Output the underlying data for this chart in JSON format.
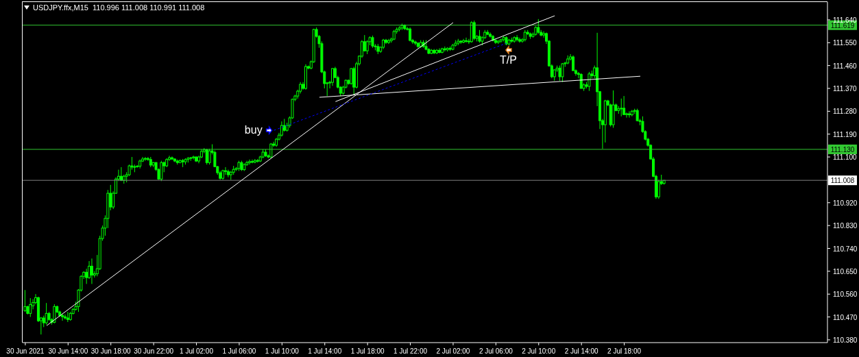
{
  "chart_data": {
    "type": "candlestick",
    "title": "USDJPY.ffx,M15  110.996 111.008 110.991 111.008",
    "color": "#00ff00",
    "x": [
      "2021-06-30T10:00",
      "2021-06-30T10:15",
      "2021-06-30T10:30",
      "2021-06-30T10:45",
      "2021-06-30T11:00",
      "2021-06-30T11:15",
      "2021-06-30T11:30",
      "2021-06-30T11:45",
      "2021-06-30T12:00",
      "2021-06-30T12:15",
      "2021-06-30T12:30",
      "2021-06-30T12:45",
      "2021-06-30T13:00",
      "2021-06-30T13:15",
      "2021-06-30T13:30",
      "2021-06-30T13:45",
      "2021-06-30T14:00",
      "2021-06-30T14:15",
      "2021-06-30T14:30",
      "2021-06-30T14:45",
      "2021-06-30T15:00",
      "2021-06-30T15:15",
      "2021-06-30T15:30",
      "2021-06-30T15:45",
      "2021-06-30T16:00",
      "2021-06-30T16:15",
      "2021-06-30T16:30",
      "2021-06-30T16:45",
      "2021-06-30T17:00",
      "2021-06-30T17:15",
      "2021-06-30T17:30",
      "2021-06-30T17:45",
      "2021-06-30T18:00",
      "2021-06-30T18:15",
      "2021-06-30T18:30",
      "2021-06-30T18:45",
      "2021-06-30T19:00",
      "2021-06-30T19:15",
      "2021-06-30T19:30",
      "2021-06-30T19:45",
      "2021-06-30T20:00",
      "2021-06-30T20:15",
      "2021-06-30T20:30",
      "2021-06-30T20:45",
      "2021-06-30T21:00",
      "2021-06-30T21:15",
      "2021-06-30T21:30",
      "2021-06-30T21:45",
      "2021-06-30T22:00",
      "2021-06-30T22:15",
      "2021-06-30T22:30",
      "2021-06-30T22:45",
      "2021-06-30T23:00",
      "2021-06-30T23:15",
      "2021-06-30T23:30",
      "2021-06-30T23:45",
      "2021-07-01T00:00",
      "2021-07-01T00:15",
      "2021-07-01T00:30",
      "2021-07-01T00:45",
      "2021-07-01T01:00",
      "2021-07-01T01:15",
      "2021-07-01T01:30",
      "2021-07-01T01:45",
      "2021-07-01T02:00",
      "2021-07-01T02:15",
      "2021-07-01T02:30",
      "2021-07-01T02:45",
      "2021-07-01T03:00",
      "2021-07-01T03:15",
      "2021-07-01T03:30",
      "2021-07-01T03:45",
      "2021-07-01T04:00",
      "2021-07-01T04:15",
      "2021-07-01T04:30",
      "2021-07-01T04:45",
      "2021-07-01T05:00",
      "2021-07-01T05:15",
      "2021-07-01T05:30",
      "2021-07-01T05:45",
      "2021-07-01T06:00",
      "2021-07-01T06:15",
      "2021-07-01T06:30",
      "2021-07-01T06:45",
      "2021-07-01T07:00",
      "2021-07-01T07:15",
      "2021-07-01T07:30",
      "2021-07-01T07:45",
      "2021-07-01T08:00",
      "2021-07-01T08:15",
      "2021-07-01T08:30",
      "2021-07-01T08:45",
      "2021-07-01T09:00",
      "2021-07-01T09:15",
      "2021-07-01T09:30",
      "2021-07-01T09:45",
      "2021-07-01T10:00",
      "2021-07-01T10:15",
      "2021-07-01T10:30",
      "2021-07-01T10:45",
      "2021-07-01T11:00",
      "2021-07-01T11:15",
      "2021-07-01T11:30",
      "2021-07-01T11:45",
      "2021-07-01T12:00",
      "2021-07-01T12:15",
      "2021-07-01T12:30",
      "2021-07-01T12:45",
      "2021-07-01T13:00",
      "2021-07-01T13:15",
      "2021-07-01T13:30",
      "2021-07-01T13:45",
      "2021-07-01T14:00",
      "2021-07-01T14:15",
      "2021-07-01T14:30",
      "2021-07-01T14:45",
      "2021-07-01T15:00",
      "2021-07-01T15:15",
      "2021-07-01T15:30",
      "2021-07-01T15:45",
      "2021-07-01T16:00",
      "2021-07-01T16:15",
      "2021-07-01T16:30",
      "2021-07-01T16:45",
      "2021-07-01T17:00",
      "2021-07-01T17:15",
      "2021-07-01T17:30",
      "2021-07-01T17:45",
      "2021-07-01T18:00",
      "2021-07-01T18:15",
      "2021-07-01T18:30",
      "2021-07-01T18:45",
      "2021-07-01T19:00",
      "2021-07-01T19:15",
      "2021-07-01T19:30",
      "2021-07-01T19:45",
      "2021-07-01T20:00",
      "2021-07-01T20:15",
      "2021-07-01T20:30",
      "2021-07-01T20:45",
      "2021-07-01T21:00",
      "2021-07-01T21:15",
      "2021-07-01T21:30",
      "2021-07-01T21:45",
      "2021-07-01T22:00",
      "2021-07-01T22:15",
      "2021-07-01T22:30",
      "2021-07-01T22:45",
      "2021-07-01T23:00",
      "2021-07-01T23:15",
      "2021-07-01T23:30",
      "2021-07-01T23:45",
      "2021-07-02T00:00",
      "2021-07-02T00:15",
      "2021-07-02T00:30",
      "2021-07-02T00:45",
      "2021-07-02T01:00",
      "2021-07-02T01:15",
      "2021-07-02T01:30",
      "2021-07-02T01:45",
      "2021-07-02T02:00",
      "2021-07-02T02:15",
      "2021-07-02T02:30",
      "2021-07-02T02:45",
      "2021-07-02T03:00",
      "2021-07-02T03:15",
      "2021-07-02T03:30",
      "2021-07-02T03:45",
      "2021-07-02T04:00",
      "2021-07-02T04:15",
      "2021-07-02T04:30",
      "2021-07-02T04:45",
      "2021-07-02T05:00",
      "2021-07-02T05:15",
      "2021-07-02T05:30",
      "2021-07-02T05:45",
      "2021-07-02T06:00",
      "2021-07-02T06:15",
      "2021-07-02T06:30",
      "2021-07-02T06:45",
      "2021-07-02T07:00",
      "2021-07-02T07:15",
      "2021-07-02T07:30",
      "2021-07-02T07:45",
      "2021-07-02T08:00",
      "2021-07-02T08:15",
      "2021-07-02T08:30",
      "2021-07-02T08:45",
      "2021-07-02T09:00",
      "2021-07-02T09:15",
      "2021-07-02T09:30",
      "2021-07-02T09:45",
      "2021-07-02T10:00",
      "2021-07-02T10:15",
      "2021-07-02T10:30",
      "2021-07-02T10:45",
      "2021-07-02T11:00",
      "2021-07-02T11:15",
      "2021-07-02T11:30",
      "2021-07-02T11:45",
      "2021-07-02T12:00",
      "2021-07-02T12:15",
      "2021-07-02T12:30",
      "2021-07-02T12:45",
      "2021-07-02T13:00",
      "2021-07-02T13:15",
      "2021-07-02T13:30",
      "2021-07-02T13:45",
      "2021-07-02T14:00",
      "2021-07-02T14:15",
      "2021-07-02T14:30",
      "2021-07-02T14:45",
      "2021-07-02T15:00",
      "2021-07-02T15:15",
      "2021-07-02T15:30",
      "2021-07-02T15:45",
      "2021-07-02T16:00",
      "2021-07-02T16:15",
      "2021-07-02T16:30",
      "2021-07-02T16:45",
      "2021-07-02T17:00",
      "2021-07-02T17:15",
      "2021-07-02T17:30",
      "2021-07-02T17:45",
      "2021-07-02T18:00",
      "2021-07-02T18:15",
      "2021-07-02T18:30",
      "2021-07-02T18:45",
      "2021-07-02T19:00",
      "2021-07-02T19:15",
      "2021-07-02T19:30",
      "2021-07-02T19:45",
      "2021-07-02T20:00",
      "2021-07-02T20:15",
      "2021-07-02T20:30",
      "2021-07-02T20:45",
      "2021-07-02T21:00",
      "2021-07-02T21:15",
      "2021-07-02T21:30",
      "2021-07-02T21:45"
    ],
    "ohlc": [
      [
        110.495,
        110.576,
        110.49,
        110.511
      ],
      [
        110.511,
        110.514,
        110.48,
        110.484
      ],
      [
        110.484,
        110.544,
        110.47,
        110.519
      ],
      [
        110.514,
        110.54,
        110.5,
        110.527
      ],
      [
        110.527,
        110.56,
        110.52,
        110.546
      ],
      [
        110.546,
        110.55,
        110.45,
        110.455
      ],
      [
        110.455,
        110.47,
        110.401,
        110.466
      ],
      [
        110.466,
        110.475,
        110.43,
        110.447
      ],
      [
        110.447,
        110.525,
        110.44,
        110.484
      ],
      [
        110.484,
        110.49,
        110.455,
        110.46
      ],
      [
        110.46,
        110.465,
        110.44,
        110.449
      ],
      [
        110.449,
        110.52,
        110.445,
        110.511
      ],
      [
        110.511,
        110.515,
        110.485,
        110.49
      ],
      [
        110.49,
        110.495,
        110.47,
        110.476
      ],
      [
        110.476,
        110.482,
        110.455,
        110.471
      ],
      [
        110.471,
        110.48,
        110.46,
        110.466
      ],
      [
        110.466,
        110.49,
        110.45,
        110.46
      ],
      [
        110.46,
        110.49,
        110.455,
        110.484
      ],
      [
        110.484,
        110.505,
        110.48,
        110.5
      ],
      [
        110.5,
        110.53,
        110.495,
        110.511
      ],
      [
        110.511,
        110.58,
        110.49,
        110.576
      ],
      [
        110.576,
        110.635,
        110.57,
        110.63
      ],
      [
        110.63,
        110.65,
        110.62,
        110.646
      ],
      [
        110.646,
        110.66,
        110.6,
        110.625
      ],
      [
        110.625,
        110.69,
        110.62,
        110.67
      ],
      [
        110.67,
        110.7,
        110.6,
        110.635
      ],
      [
        110.635,
        110.65,
        110.625,
        110.64
      ],
      [
        110.64,
        110.714,
        110.63,
        110.66
      ],
      [
        110.66,
        110.79,
        110.655,
        110.779
      ],
      [
        110.779,
        110.83,
        110.77,
        110.82
      ],
      [
        110.82,
        110.87,
        110.79,
        110.858
      ],
      [
        110.858,
        110.97,
        110.82,
        110.957
      ],
      [
        110.957,
        110.99,
        110.89,
        110.903
      ],
      [
        110.903,
        110.965,
        110.895,
        110.957
      ],
      [
        110.957,
        111.02,
        110.955,
        111.013
      ],
      [
        111.013,
        111.05,
        111.005,
        111.024
      ],
      [
        111.024,
        111.06,
        111.005,
        111.008
      ],
      [
        111.008,
        111.03,
        110.995,
        111.024
      ],
      [
        111.024,
        111.04,
        111.0,
        111.03
      ],
      [
        111.03,
        111.07,
        111.025,
        111.065
      ],
      [
        111.065,
        111.1,
        111.05,
        111.06
      ],
      [
        111.06,
        111.07,
        111.04,
        111.062
      ],
      [
        111.062,
        111.068,
        111.058,
        111.064
      ],
      [
        111.064,
        111.09,
        111.055,
        111.084
      ],
      [
        111.084,
        111.1,
        111.08,
        111.092
      ],
      [
        111.092,
        111.1,
        111.085,
        111.094
      ],
      [
        111.094,
        111.1,
        111.085,
        111.09
      ],
      [
        111.09,
        111.1,
        111.06,
        111.068
      ],
      [
        111.068,
        111.08,
        111.06,
        111.078
      ],
      [
        111.078,
        111.08,
        111.045,
        111.051
      ],
      [
        111.051,
        111.055,
        111.01,
        111.013
      ],
      [
        111.013,
        111.085,
        111.005,
        111.078
      ],
      [
        111.078,
        111.082,
        111.04,
        111.065
      ],
      [
        111.065,
        111.095,
        111.06,
        111.09
      ],
      [
        111.09,
        111.105,
        111.085,
        111.097
      ],
      [
        111.097,
        111.102,
        111.088,
        111.092
      ],
      [
        111.092,
        111.095,
        111.08,
        111.084
      ],
      [
        111.084,
        111.09,
        111.07,
        111.078
      ],
      [
        111.078,
        111.09,
        111.075,
        111.086
      ],
      [
        111.086,
        111.092,
        111.06,
        111.081
      ],
      [
        111.081,
        111.095,
        111.07,
        111.09
      ],
      [
        111.09,
        111.1,
        111.078,
        111.095
      ],
      [
        111.095,
        111.1,
        111.085,
        111.097
      ],
      [
        111.097,
        111.105,
        111.09,
        111.1
      ],
      [
        111.1,
        111.102,
        111.08,
        111.084
      ],
      [
        111.084,
        111.105,
        111.075,
        111.1
      ],
      [
        111.1,
        111.13,
        111.095,
        111.122
      ],
      [
        111.122,
        111.135,
        111.115,
        111.128
      ],
      [
        111.128,
        111.132,
        111.07,
        111.078
      ],
      [
        111.078,
        111.132,
        111.07,
        111.124
      ],
      [
        111.124,
        111.15,
        111.11,
        111.118
      ],
      [
        111.118,
        111.125,
        111.06,
        111.062
      ],
      [
        111.062,
        111.065,
        111.03,
        111.038
      ],
      [
        111.038,
        111.045,
        111.01,
        111.016
      ],
      [
        111.016,
        111.05,
        111.01,
        111.046
      ],
      [
        111.046,
        111.06,
        111.03,
        111.043
      ],
      [
        111.043,
        111.05,
        111.02,
        111.03
      ],
      [
        111.03,
        111.045,
        111.01,
        111.04
      ],
      [
        111.04,
        111.065,
        111.03,
        111.051
      ],
      [
        111.051,
        111.06,
        111.045,
        111.055
      ],
      [
        111.055,
        111.085,
        111.045,
        111.078
      ],
      [
        111.078,
        111.085,
        111.045,
        111.05
      ],
      [
        111.05,
        111.075,
        111.045,
        111.07
      ],
      [
        111.07,
        111.085,
        111.065,
        111.078
      ],
      [
        111.078,
        111.09,
        111.07,
        111.082
      ],
      [
        111.082,
        111.09,
        111.075,
        111.08
      ],
      [
        111.08,
        111.092,
        111.075,
        111.086
      ],
      [
        111.086,
        111.092,
        111.078,
        111.084
      ],
      [
        111.084,
        111.105,
        111.08,
        111.1
      ],
      [
        111.1,
        111.13,
        111.095,
        111.119
      ],
      [
        111.119,
        111.13,
        111.1,
        111.105
      ],
      [
        111.105,
        111.11,
        111.095,
        111.1
      ],
      [
        111.1,
        111.155,
        111.095,
        111.151
      ],
      [
        111.151,
        111.16,
        111.14,
        111.146
      ],
      [
        111.146,
        111.175,
        111.14,
        111.17
      ],
      [
        111.17,
        111.195,
        111.165,
        111.186
      ],
      [
        111.186,
        111.24,
        111.18,
        111.224
      ],
      [
        111.224,
        111.25,
        111.2,
        111.205
      ],
      [
        111.205,
        111.235,
        111.2,
        111.224
      ],
      [
        111.224,
        111.26,
        111.215,
        111.254
      ],
      [
        111.254,
        111.33,
        111.25,
        111.327
      ],
      [
        111.327,
        111.345,
        111.32,
        111.34
      ],
      [
        111.34,
        111.365,
        111.33,
        111.359
      ],
      [
        111.359,
        111.395,
        111.35,
        111.386
      ],
      [
        111.386,
        111.395,
        111.365,
        111.37
      ],
      [
        111.37,
        111.465,
        111.365,
        111.456
      ],
      [
        111.456,
        111.46,
        111.445,
        111.45
      ],
      [
        111.45,
        111.48,
        111.445,
        111.475
      ],
      [
        111.475,
        111.605,
        111.47,
        111.602
      ],
      [
        111.602,
        111.61,
        111.57,
        111.575
      ],
      [
        111.575,
        111.58,
        111.53,
        111.546
      ],
      [
        111.546,
        111.555,
        111.43,
        111.435
      ],
      [
        111.435,
        111.44,
        111.37,
        111.389
      ],
      [
        111.389,
        111.395,
        111.34,
        111.392
      ],
      [
        111.392,
        111.4,
        111.37,
        111.394
      ],
      [
        111.394,
        111.45,
        111.38,
        111.448
      ],
      [
        111.448,
        111.455,
        111.41,
        111.413
      ],
      [
        111.413,
        111.42,
        111.37,
        111.375
      ],
      [
        111.375,
        111.378,
        111.34,
        111.351
      ],
      [
        111.351,
        111.38,
        111.345,
        111.375
      ],
      [
        111.375,
        111.405,
        111.37,
        111.402
      ],
      [
        111.402,
        111.405,
        111.385,
        111.389
      ],
      [
        111.389,
        111.45,
        111.385,
        111.448
      ],
      [
        111.448,
        111.455,
        111.345,
        111.375
      ],
      [
        111.375,
        111.475,
        111.37,
        111.467
      ],
      [
        111.467,
        111.5,
        111.46,
        111.497
      ],
      [
        111.497,
        111.56,
        111.49,
        111.554
      ],
      [
        111.554,
        111.58,
        111.515,
        111.518
      ],
      [
        111.518,
        111.56,
        111.505,
        111.554
      ],
      [
        111.554,
        111.575,
        111.54,
        111.57
      ],
      [
        111.57,
        111.578,
        111.53,
        111.537
      ],
      [
        111.537,
        111.545,
        111.52,
        111.535
      ],
      [
        111.535,
        111.545,
        111.505,
        111.516
      ],
      [
        111.516,
        111.535,
        111.51,
        111.532
      ],
      [
        111.532,
        111.565,
        111.525,
        111.56
      ],
      [
        111.56,
        111.565,
        111.545,
        111.551
      ],
      [
        111.551,
        111.565,
        111.545,
        111.558
      ],
      [
        111.558,
        111.57,
        111.55,
        111.564
      ],
      [
        111.564,
        111.6,
        111.56,
        111.594
      ],
      [
        111.594,
        111.61,
        111.585,
        111.602
      ],
      [
        111.602,
        111.615,
        111.595,
        111.608
      ],
      [
        111.608,
        111.625,
        111.6,
        111.618
      ],
      [
        111.618,
        111.622,
        111.6,
        111.605
      ],
      [
        111.605,
        111.612,
        111.598,
        111.604
      ],
      [
        111.604,
        111.61,
        111.555,
        111.559
      ],
      [
        111.559,
        111.565,
        111.545,
        111.553
      ],
      [
        111.553,
        111.558,
        111.54,
        111.548
      ],
      [
        111.548,
        111.552,
        111.53,
        111.535
      ],
      [
        111.535,
        111.56,
        111.53,
        111.551
      ],
      [
        111.551,
        111.56,
        111.53,
        111.535
      ],
      [
        111.535,
        111.56,
        111.52,
        111.524
      ],
      [
        111.524,
        111.528,
        111.505,
        111.508
      ],
      [
        111.508,
        111.525,
        111.505,
        111.52
      ],
      [
        111.52,
        111.525,
        111.505,
        111.51
      ],
      [
        111.51,
        111.525,
        111.505,
        111.52
      ],
      [
        111.52,
        111.528,
        111.508,
        111.512
      ],
      [
        111.512,
        111.53,
        111.508,
        111.526
      ],
      [
        111.526,
        111.535,
        111.515,
        111.522
      ],
      [
        111.522,
        111.532,
        111.515,
        111.528
      ],
      [
        111.528,
        111.535,
        111.518,
        111.524
      ],
      [
        111.524,
        111.545,
        111.52,
        111.54
      ],
      [
        111.54,
        111.56,
        111.535,
        111.548
      ],
      [
        111.548,
        111.565,
        111.54,
        111.556
      ],
      [
        111.556,
        111.56,
        111.545,
        111.552
      ],
      [
        111.552,
        111.565,
        111.548,
        111.558
      ],
      [
        111.558,
        111.57,
        111.55,
        111.556
      ],
      [
        111.556,
        111.565,
        111.545,
        111.554
      ],
      [
        111.554,
        111.635,
        111.55,
        111.629
      ],
      [
        111.629,
        111.637,
        111.56,
        111.567
      ],
      [
        111.567,
        111.58,
        111.555,
        111.575
      ],
      [
        111.575,
        111.6,
        111.55,
        111.556
      ],
      [
        111.556,
        111.575,
        111.54,
        111.57
      ],
      [
        111.57,
        111.6,
        111.565,
        111.591
      ],
      [
        111.591,
        111.6,
        111.58,
        111.583
      ],
      [
        111.583,
        111.59,
        111.57,
        111.575
      ],
      [
        111.575,
        111.58,
        111.555,
        111.559
      ],
      [
        111.559,
        111.565,
        111.545,
        111.551
      ],
      [
        111.551,
        111.56,
        111.545,
        111.556
      ],
      [
        111.556,
        111.565,
        111.55,
        111.562
      ],
      [
        111.562,
        111.578,
        111.555,
        111.57
      ],
      [
        111.57,
        111.575,
        111.54,
        111.545
      ],
      [
        111.545,
        111.565,
        111.54,
        111.56
      ],
      [
        111.56,
        111.57,
        111.55,
        111.556
      ],
      [
        111.556,
        111.575,
        111.55,
        111.57
      ],
      [
        111.57,
        111.58,
        111.555,
        111.562
      ],
      [
        111.562,
        111.57,
        111.55,
        111.556
      ],
      [
        111.556,
        111.568,
        111.55,
        111.562
      ],
      [
        111.562,
        111.6,
        111.555,
        111.591
      ],
      [
        111.591,
        111.6,
        111.58,
        111.585
      ],
      [
        111.585,
        111.59,
        111.565,
        111.575
      ],
      [
        111.575,
        111.59,
        111.57,
        111.583
      ],
      [
        111.583,
        111.615,
        111.578,
        111.61
      ],
      [
        111.61,
        111.643,
        111.585,
        111.591
      ],
      [
        111.591,
        111.6,
        111.575,
        111.58
      ],
      [
        111.58,
        111.595,
        111.57,
        111.586
      ],
      [
        111.586,
        111.59,
        111.545,
        111.556
      ],
      [
        111.556,
        111.56,
        111.455,
        111.459
      ],
      [
        111.459,
        111.465,
        111.41,
        111.416
      ],
      [
        111.416,
        111.445,
        111.4,
        111.443
      ],
      [
        111.443,
        111.46,
        111.435,
        111.45
      ],
      [
        111.45,
        111.46,
        111.4,
        111.416
      ],
      [
        111.416,
        111.47,
        111.395,
        111.467
      ],
      [
        111.467,
        111.475,
        111.455,
        111.47
      ],
      [
        111.47,
        111.5,
        111.465,
        111.486
      ],
      [
        111.486,
        111.505,
        111.48,
        111.494
      ],
      [
        111.494,
        111.5,
        111.44,
        111.44
      ],
      [
        111.44,
        111.445,
        111.42,
        111.429
      ],
      [
        111.429,
        111.435,
        111.41,
        111.425
      ],
      [
        111.425,
        111.43,
        111.37,
        111.37
      ],
      [
        111.37,
        111.39,
        111.36,
        111.384
      ],
      [
        111.384,
        111.395,
        111.37,
        111.378
      ],
      [
        111.378,
        111.435,
        111.36,
        111.427
      ],
      [
        111.427,
        111.44,
        111.41,
        111.42
      ],
      [
        111.42,
        111.46,
        111.41,
        111.451
      ],
      [
        111.451,
        111.589,
        111.3,
        111.357
      ],
      [
        111.357,
        111.36,
        111.21,
        111.243
      ],
      [
        111.243,
        111.25,
        111.132,
        111.227
      ],
      [
        111.227,
        111.325,
        111.157,
        111.321
      ],
      [
        111.321,
        111.325,
        111.3,
        111.305
      ],
      [
        111.305,
        111.31,
        111.22,
        111.227
      ],
      [
        111.227,
        111.362,
        111.215,
        111.305
      ],
      [
        111.305,
        111.31,
        111.28,
        111.283
      ],
      [
        111.283,
        111.3,
        111.27,
        111.29
      ],
      [
        111.29,
        111.33,
        111.26,
        111.292
      ],
      [
        111.292,
        111.34,
        111.265,
        111.267
      ],
      [
        111.267,
        111.275,
        111.255,
        111.27
      ],
      [
        111.27,
        111.28,
        111.255,
        111.266
      ],
      [
        111.266,
        111.285,
        111.26,
        111.28
      ],
      [
        111.28,
        111.29,
        111.27,
        111.283
      ],
      [
        111.283,
        111.29,
        111.24,
        111.243
      ],
      [
        111.243,
        111.25,
        111.225,
        111.24
      ],
      [
        111.24,
        111.26,
        111.195,
        111.2
      ],
      [
        111.2,
        111.205,
        111.165,
        111.17
      ],
      [
        111.17,
        111.175,
        111.14,
        111.146
      ],
      [
        111.146,
        111.15,
        111.09,
        111.092
      ],
      [
        111.092,
        111.1,
        111.02,
        111.024
      ],
      [
        111.024,
        111.03,
        110.935,
        110.943
      ],
      [
        110.943,
        111.01,
        110.935,
        111.003
      ],
      [
        111.003,
        111.03,
        110.99,
        110.995
      ],
      [
        110.996,
        111.008,
        110.991,
        111.008
      ]
    ],
    "series": [
      {
        "type": "line",
        "color": "#ffffff",
        "x": [
          "2021-06-30T12:00",
          "2021-07-02T02:00"
        ],
        "values": [
          110.436,
          111.629
        ]
      },
      {
        "type": "line",
        "color": "#ffffff",
        "x": [
          "2021-07-01T15:00",
          "2021-07-02T11:30"
        ],
        "values": [
          111.318,
          111.656
        ]
      },
      {
        "type": "line",
        "color": "#ffffff",
        "x": [
          "2021-07-01T13:30",
          "2021-07-02T19:30"
        ],
        "values": [
          111.335,
          111.418
        ]
      },
      {
        "type": "line",
        "color": "#0000ff",
        "line_style": "dotted",
        "x": [
          "2021-07-01T09:15",
          "2021-07-02T07:00"
        ],
        "values": [
          111.205,
          111.548
        ]
      }
    ],
    "xlim": [
      "2021-06-30T09:45",
      "2021-07-03T13:00"
    ],
    "xticks": [
      {
        "value": "2021-06-30T10:00",
        "label": "30 Jun 2021"
      },
      {
        "value": "2021-06-30T14:00",
        "label": "30 Jun 14:00"
      },
      {
        "value": "2021-06-30T18:00",
        "label": "30 Jun 18:00"
      },
      {
        "value": "2021-06-30T22:00",
        "label": "30 Jun 22:00"
      },
      {
        "value": "2021-07-01T02:00",
        "label": "1 Jul 02:00"
      },
      {
        "value": "2021-07-01T06:00",
        "label": "1 Jul 06:00"
      },
      {
        "value": "2021-07-01T10:00",
        "label": "1 Jul 10:00"
      },
      {
        "value": "2021-07-01T14:00",
        "label": "1 Jul 14:00"
      },
      {
        "value": "2021-07-01T18:00",
        "label": "1 Jul 18:00"
      },
      {
        "value": "2021-07-01T22:00",
        "label": "1 Jul 22:00"
      },
      {
        "value": "2021-07-02T02:00",
        "label": "2 Jul 02:00"
      },
      {
        "value": "2021-07-02T06:00",
        "label": "2 Jul 06:00"
      },
      {
        "value": "2021-07-02T10:00",
        "label": "2 Jul 10:00"
      },
      {
        "value": "2021-07-02T14:00",
        "label": "2 Jul 14:00"
      },
      {
        "value": "2021-07-02T18:00",
        "label": "2 Jul 18:00"
      }
    ],
    "ylim": [
      110.369,
      111.71
    ],
    "yticks": [
      {
        "value": 111.64,
        "label": "111.640"
      },
      {
        "value": 111.55,
        "label": "111.550"
      },
      {
        "value": 111.46,
        "label": "111.460"
      },
      {
        "value": 111.37,
        "label": "111.370"
      },
      {
        "value": 111.28,
        "label": "111.280"
      },
      {
        "value": 111.19,
        "label": "111.190"
      },
      {
        "value": 111.1,
        "label": "111.100"
      },
      {
        "value": 110.92,
        "label": "110.920"
      },
      {
        "value": 110.83,
        "label": "110.830"
      },
      {
        "value": 110.74,
        "label": "110.740"
      },
      {
        "value": 110.65,
        "label": "110.650"
      },
      {
        "value": 110.56,
        "label": "110.560"
      },
      {
        "value": 110.47,
        "label": "110.470"
      },
      {
        "value": 110.38,
        "label": "110.380"
      }
    ],
    "ref_lines": [
      {
        "axis": "y",
        "value": 111.619,
        "label": "111.619",
        "color": "#32c832"
      },
      {
        "axis": "y",
        "value": 111.13,
        "label": "111.130",
        "color": "#32c832"
      },
      {
        "axis": "y",
        "value": 111.008,
        "label": "111.008",
        "color": "#808080"
      }
    ],
    "annotations": [
      {
        "text": "buy",
        "x": "2021-07-01T09:15",
        "y": 111.205
      },
      {
        "text": "T/P",
        "x": "2021-07-02T07:00",
        "y": 111.548
      }
    ]
  }
}
